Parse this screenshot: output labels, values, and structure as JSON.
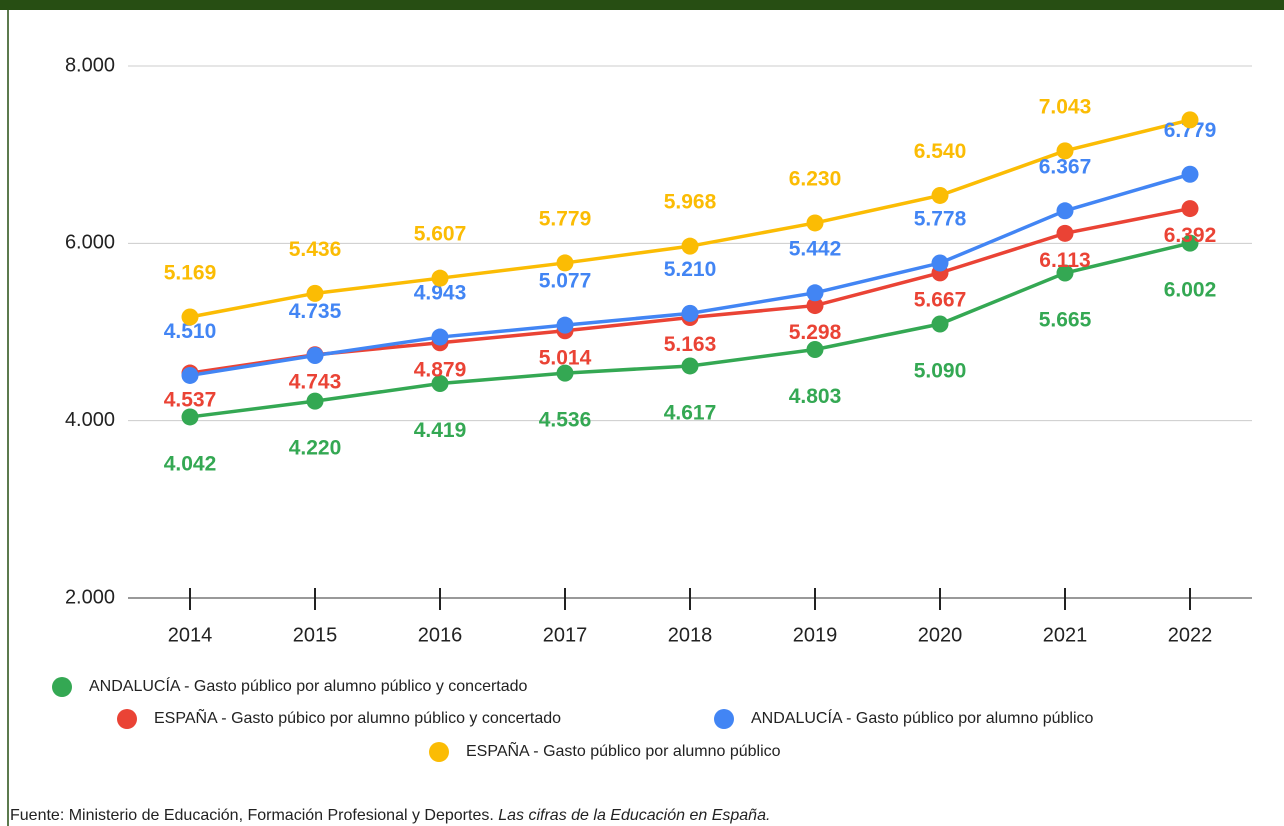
{
  "chart_data": {
    "type": "line",
    "categories": [
      "2014",
      "2015",
      "2016",
      "2017",
      "2018",
      "2019",
      "2020",
      "2021",
      "2022"
    ],
    "series": [
      {
        "name": "ANDALUCÍA - Gasto público por alumno público y concertado",
        "color": "#34a853",
        "values": [
          4042,
          4220,
          4419,
          4536,
          4617,
          4803,
          5090,
          5665,
          6002
        ],
        "value_labels": [
          "4.042",
          "4.220",
          "4.419",
          "4.536",
          "4.617",
          "4.803",
          "5.090",
          "5.665",
          "6.002"
        ]
      },
      {
        "name": "ESPAÑA - Gasto púbico por alumno público y concertado",
        "color": "#ea4335",
        "values": [
          4537,
          4743,
          4879,
          5014,
          5163,
          5298,
          5667,
          6113,
          6392
        ],
        "value_labels": [
          "4.537",
          "4.743",
          "4.879",
          "5.014",
          "5.163",
          "5.298",
          "5.667",
          "6.113",
          "6.392"
        ]
      },
      {
        "name": "ANDALUCÍA - Gasto público por alumno público",
        "color": "#4285f4",
        "values": [
          4510,
          4735,
          4943,
          5077,
          5210,
          5442,
          5778,
          6367,
          6779
        ],
        "value_labels": [
          "4.510",
          "4.735",
          "4.943",
          "5.077",
          "5.210",
          "5.442",
          "5.778",
          "6.367",
          "6.779"
        ]
      },
      {
        "name": "ESPAÑA - Gasto público por alumno público",
        "color": "#fbbc04",
        "values": [
          5169,
          5436,
          5607,
          5779,
          5968,
          6230,
          6540,
          7043,
          7392
        ],
        "value_labels": [
          "5.169",
          "5.436",
          "5.607",
          "5.779",
          "5.968",
          "6.230",
          "6.540",
          "7.043",
          null
        ]
      }
    ],
    "ylim": [
      2000,
      8000
    ],
    "yticks": [
      {
        "value": 2000,
        "label": "2.000"
      },
      {
        "value": 4000,
        "label": "4.000"
      },
      {
        "value": 6000,
        "label": "6.000"
      },
      {
        "value": 8000,
        "label": "8.000"
      }
    ],
    "grid": true
  },
  "source": {
    "text": "Fuente: Ministerio de Educación, Formación Profesional y Deportes. ",
    "italic": "Las cifras de la Educación en España."
  }
}
